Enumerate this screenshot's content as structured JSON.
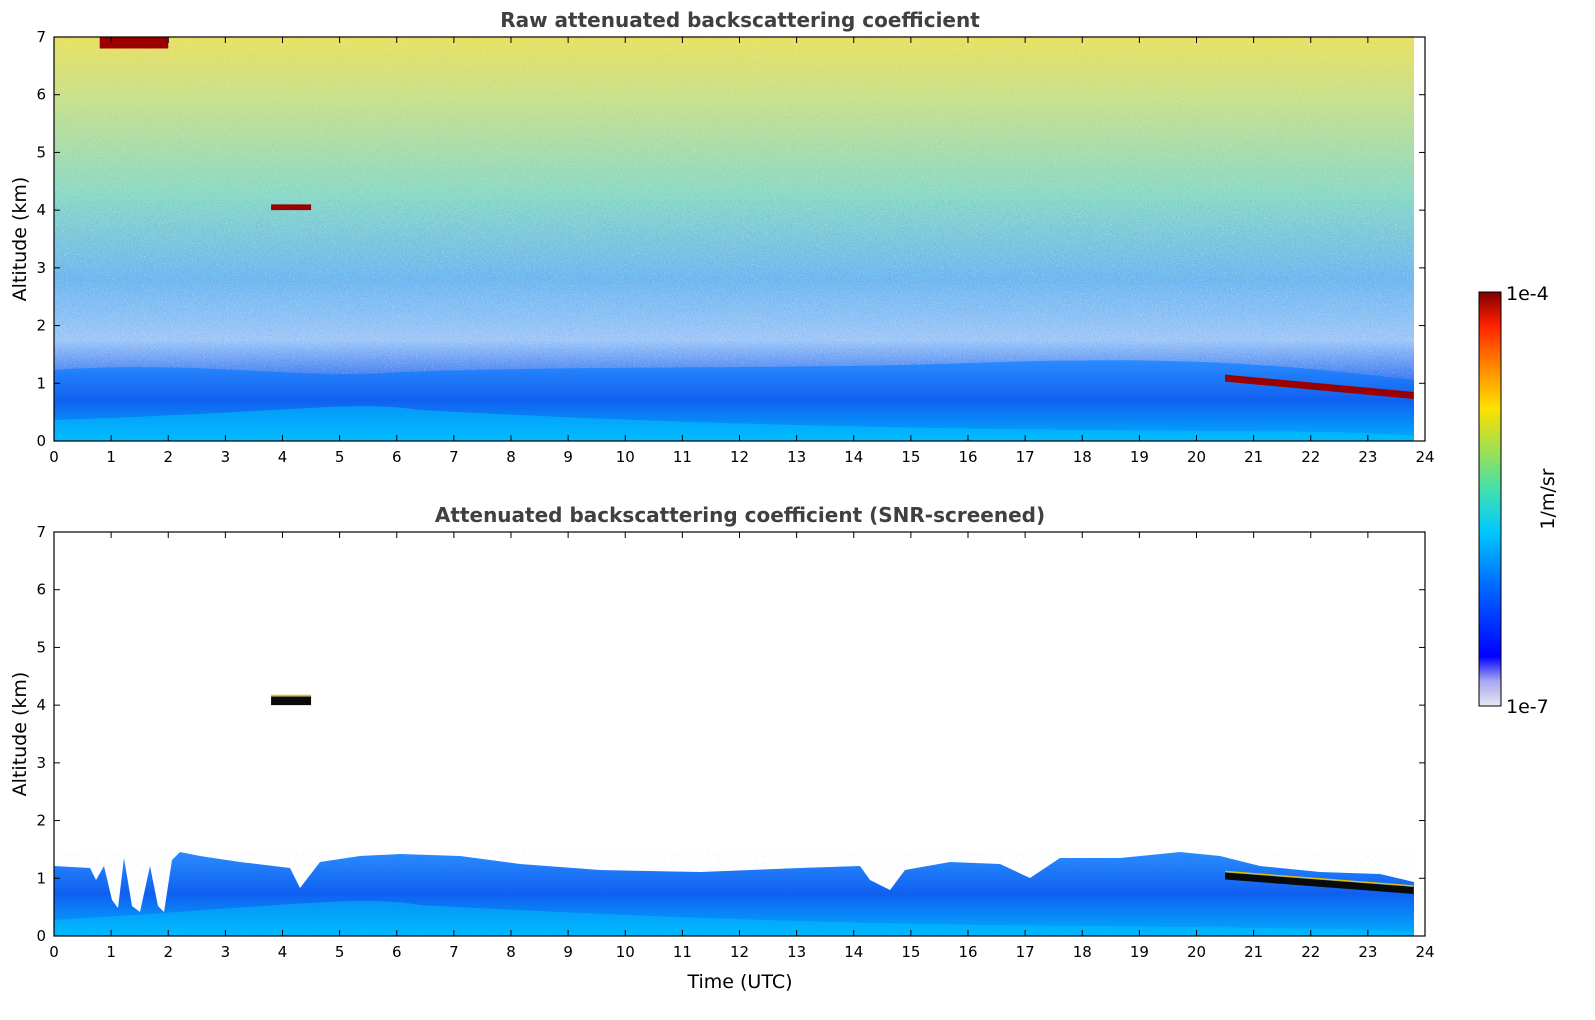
{
  "chart_data": [
    {
      "type": "heatmap",
      "title": "Raw attenuated backscattering coefficient",
      "xlabel": "",
      "ylabel": "Altitude (km)",
      "xlim": [
        0,
        24
      ],
      "ylim": [
        0,
        7
      ],
      "x_ticks": [
        "0",
        "1",
        "2",
        "3",
        "4",
        "5",
        "6",
        "7",
        "8",
        "9",
        "10",
        "11",
        "12",
        "13",
        "14",
        "15",
        "16",
        "17",
        "18",
        "19",
        "20",
        "21",
        "22",
        "23",
        "24"
      ],
      "y_ticks": [
        "0",
        "1",
        "2",
        "3",
        "4",
        "5",
        "6",
        "7"
      ],
      "features": [
        {
          "kind": "cloud",
          "x": [
            3.8,
            4.5
          ],
          "altitude": [
            4.0,
            4.1
          ],
          "level": "1e-4"
        },
        {
          "kind": "cloud",
          "x": [
            0.8,
            2.0
          ],
          "altitude": [
            6.8,
            7.0
          ],
          "level": "1e-4"
        },
        {
          "kind": "cloud",
          "x": [
            20.5,
            23.8
          ],
          "altitude_start": 1.15,
          "altitude_end": 0.85,
          "level": "1e-4"
        },
        {
          "kind": "boundary-layer",
          "x": [
            0,
            23.8
          ],
          "altitude": [
            0,
            1.2
          ],
          "level": "mid"
        }
      ]
    },
    {
      "type": "heatmap",
      "title": "Attenuated backscattering coefficient (SNR-screened)",
      "xlabel": "Time (UTC)",
      "ylabel": "Altitude (km)",
      "xlim": [
        0,
        24
      ],
      "ylim": [
        0,
        7
      ],
      "x_ticks": [
        "0",
        "1",
        "2",
        "3",
        "4",
        "5",
        "6",
        "7",
        "8",
        "9",
        "10",
        "11",
        "12",
        "13",
        "14",
        "15",
        "16",
        "17",
        "18",
        "19",
        "20",
        "21",
        "22",
        "23",
        "24"
      ],
      "y_ticks": [
        "0",
        "1",
        "2",
        "3",
        "4",
        "5",
        "6",
        "7"
      ],
      "features": [
        {
          "kind": "cloud",
          "x": [
            3.8,
            4.5
          ],
          "altitude": [
            4.0,
            4.15
          ],
          "level": "saturated"
        },
        {
          "kind": "cloud",
          "x": [
            20.5,
            23.8
          ],
          "altitude_start": 1.1,
          "altitude_end": 0.85,
          "level": "saturated"
        },
        {
          "kind": "boundary-layer",
          "x": [
            0,
            23.8
          ],
          "altitude": [
            0,
            1.3
          ],
          "level": "mid"
        }
      ]
    }
  ],
  "colorbar": {
    "label": "1/m/sr",
    "max_label": "1e-4",
    "min_label": "1e-7",
    "colors": [
      "#e6e6f5",
      "#b0b0f0",
      "#0000ff",
      "#0060ff",
      "#00c0ff",
      "#40e0c0",
      "#a0e060",
      "#ffe000",
      "#ff8000",
      "#ff2000",
      "#800000"
    ]
  }
}
